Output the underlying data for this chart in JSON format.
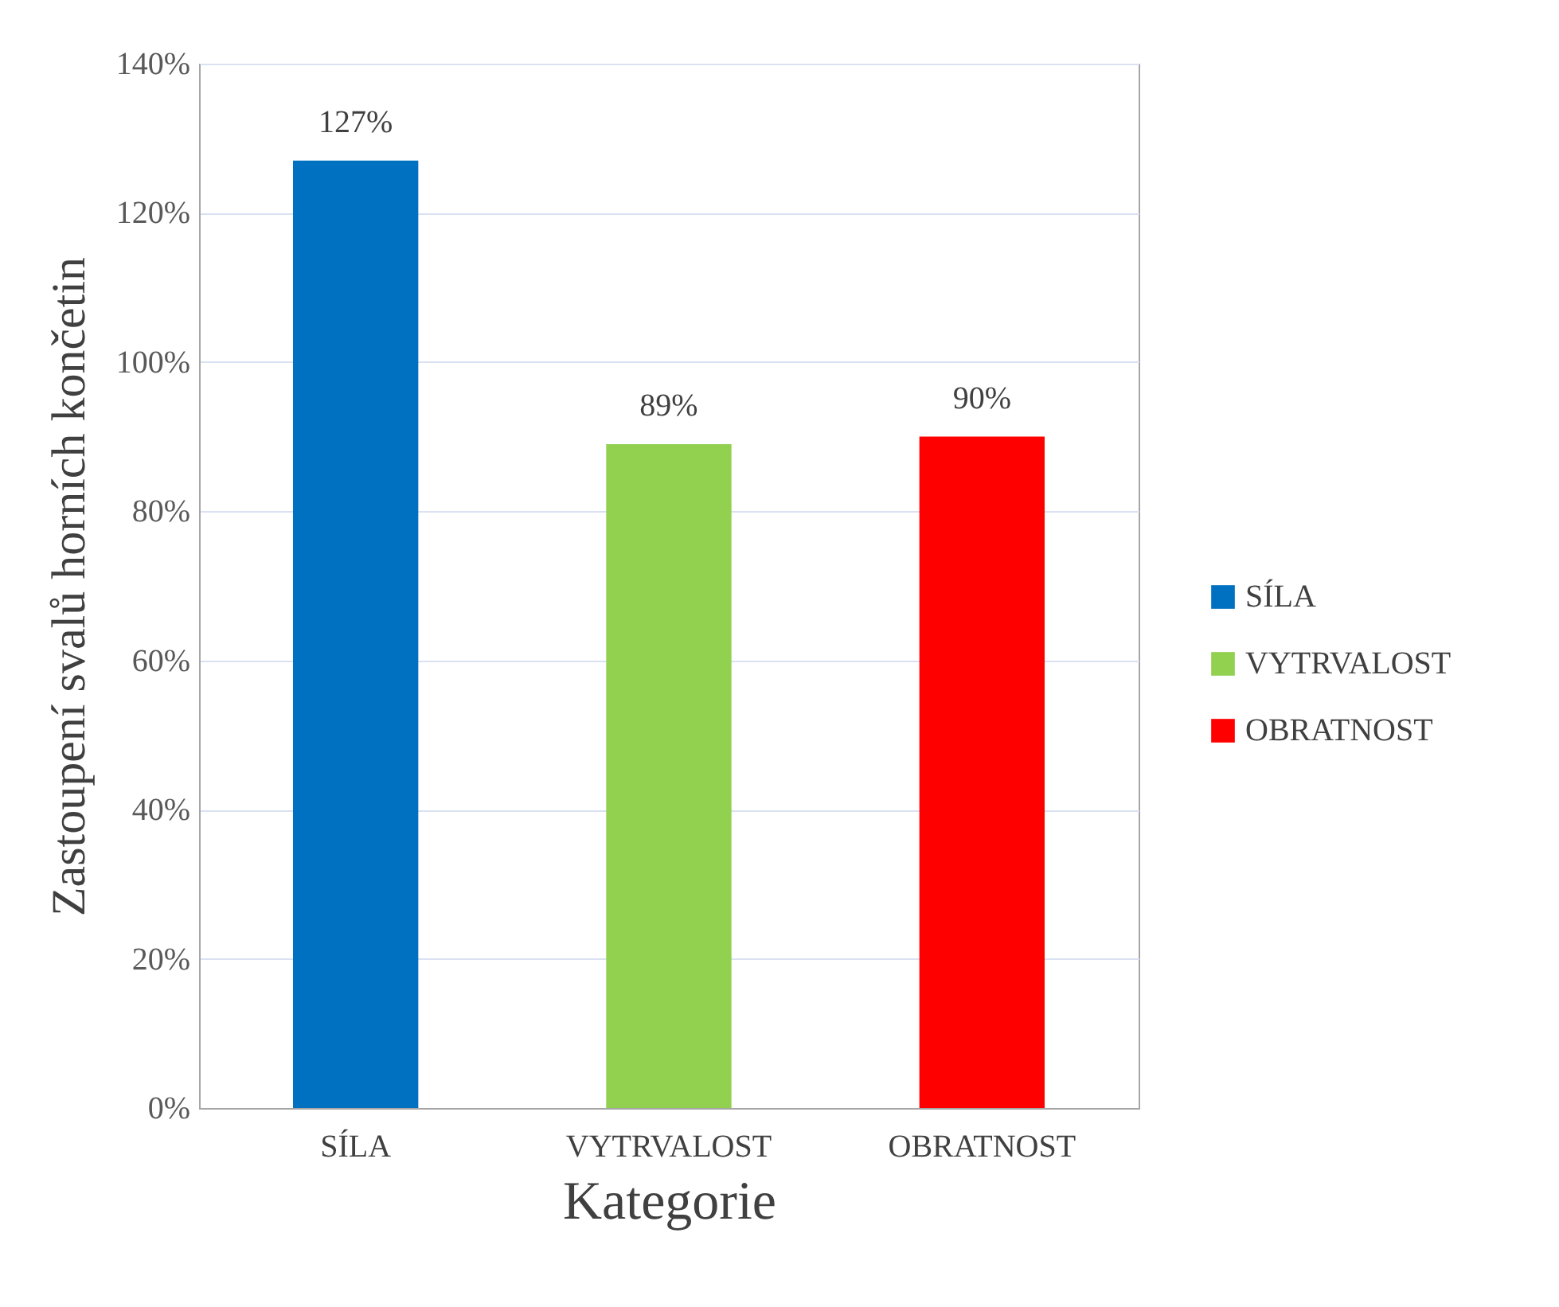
{
  "chart_data": {
    "type": "bar",
    "xlabel": "Kategorie",
    "ylabel": "Zastoupení svalů horních končetin",
    "categories": [
      "SÍLA",
      "VYTRVALOST",
      "OBRATNOST"
    ],
    "series": [
      {
        "name": "SÍLA",
        "color": "#0070c0",
        "values": [
          127,
          null,
          null
        ],
        "value_labels": [
          "127%",
          null,
          null
        ]
      },
      {
        "name": "VYTRVALOST",
        "color": "#92d050",
        "values": [
          null,
          89,
          null
        ],
        "value_labels": [
          null,
          "89%",
          null
        ]
      },
      {
        "name": "OBRATNOST",
        "color": "#ff0000",
        "values": [
          null,
          null,
          90
        ],
        "value_labels": [
          null,
          null,
          "90%"
        ]
      }
    ],
    "ylim": [
      0,
      140
    ],
    "yticks": [
      {
        "value": 0,
        "label": "0%"
      },
      {
        "value": 20,
        "label": "20%"
      },
      {
        "value": 40,
        "label": "40%"
      },
      {
        "value": 60,
        "label": "60%"
      },
      {
        "value": 80,
        "label": "80%"
      },
      {
        "value": 100,
        "label": "100%"
      },
      {
        "value": 120,
        "label": "120%"
      },
      {
        "value": 140,
        "label": "140%"
      }
    ],
    "grid": "y",
    "legend": "right"
  }
}
